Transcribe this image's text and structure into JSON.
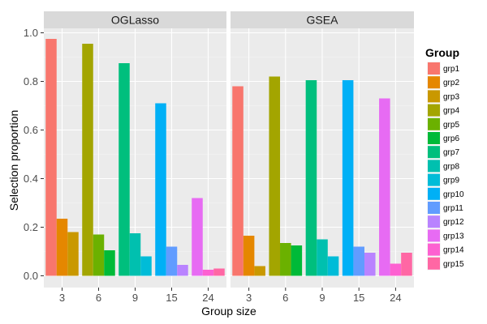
{
  "chart_data": {
    "type": "bar",
    "xlabel": "Group size",
    "ylabel": "Selection proportion",
    "ylim": [
      0,
      1.0
    ],
    "yticks": [
      "0.0",
      "0.2",
      "0.4",
      "0.6",
      "0.8",
      "1.0"
    ],
    "categories": [
      "3",
      "6",
      "9",
      "15",
      "24"
    ],
    "legend": {
      "title": "Group",
      "position": "right",
      "labels": [
        "grp1",
        "grp2",
        "grp3",
        "grp4",
        "grp5",
        "grp6",
        "grp7",
        "grp8",
        "grp9",
        "grp10",
        "grp11",
        "grp12",
        "grp13",
        "grp14",
        "grp15"
      ],
      "colors": [
        "#F8766D",
        "#E58700",
        "#C99800",
        "#A3A500",
        "#6BB100",
        "#00BA38",
        "#00BF7D",
        "#00C0AF",
        "#00BCD8",
        "#00B0F6",
        "#619CFF",
        "#B983FF",
        "#E76BF3",
        "#FD61D1",
        "#FF67A4"
      ]
    },
    "facets": [
      {
        "title": "OGLasso",
        "groups": [
          [
            {
              "grp": 1,
              "value": 0.975
            },
            {
              "grp": 2,
              "value": 0.235
            },
            {
              "grp": 3,
              "value": 0.18
            }
          ],
          [
            {
              "grp": 4,
              "value": 0.955
            },
            {
              "grp": 5,
              "value": 0.17
            },
            {
              "grp": 6,
              "value": 0.105
            }
          ],
          [
            {
              "grp": 7,
              "value": 0.875
            },
            {
              "grp": 8,
              "value": 0.175
            },
            {
              "grp": 9,
              "value": 0.08
            }
          ],
          [
            {
              "grp": 10,
              "value": 0.71
            },
            {
              "grp": 11,
              "value": 0.12
            },
            {
              "grp": 12,
              "value": 0.045
            }
          ],
          [
            {
              "grp": 13,
              "value": 0.32
            },
            {
              "grp": 14,
              "value": 0.025
            },
            {
              "grp": 15,
              "value": 0.03
            }
          ]
        ]
      },
      {
        "title": "GSEA",
        "groups": [
          [
            {
              "grp": 1,
              "value": 0.78
            },
            {
              "grp": 2,
              "value": 0.165
            },
            {
              "grp": 3,
              "value": 0.04
            }
          ],
          [
            {
              "grp": 4,
              "value": 0.82
            },
            {
              "grp": 5,
              "value": 0.135
            },
            {
              "grp": 6,
              "value": 0.125
            }
          ],
          [
            {
              "grp": 7,
              "value": 0.805
            },
            {
              "grp": 8,
              "value": 0.15
            },
            {
              "grp": 9,
              "value": 0.08
            }
          ],
          [
            {
              "grp": 10,
              "value": 0.805
            },
            {
              "grp": 11,
              "value": 0.12
            },
            {
              "grp": 12,
              "value": 0.095
            }
          ],
          [
            {
              "grp": 13,
              "value": 0.73
            },
            {
              "grp": 14,
              "value": 0.05
            },
            {
              "grp": 15,
              "value": 0.095
            }
          ]
        ]
      }
    ],
    "grid": true
  }
}
